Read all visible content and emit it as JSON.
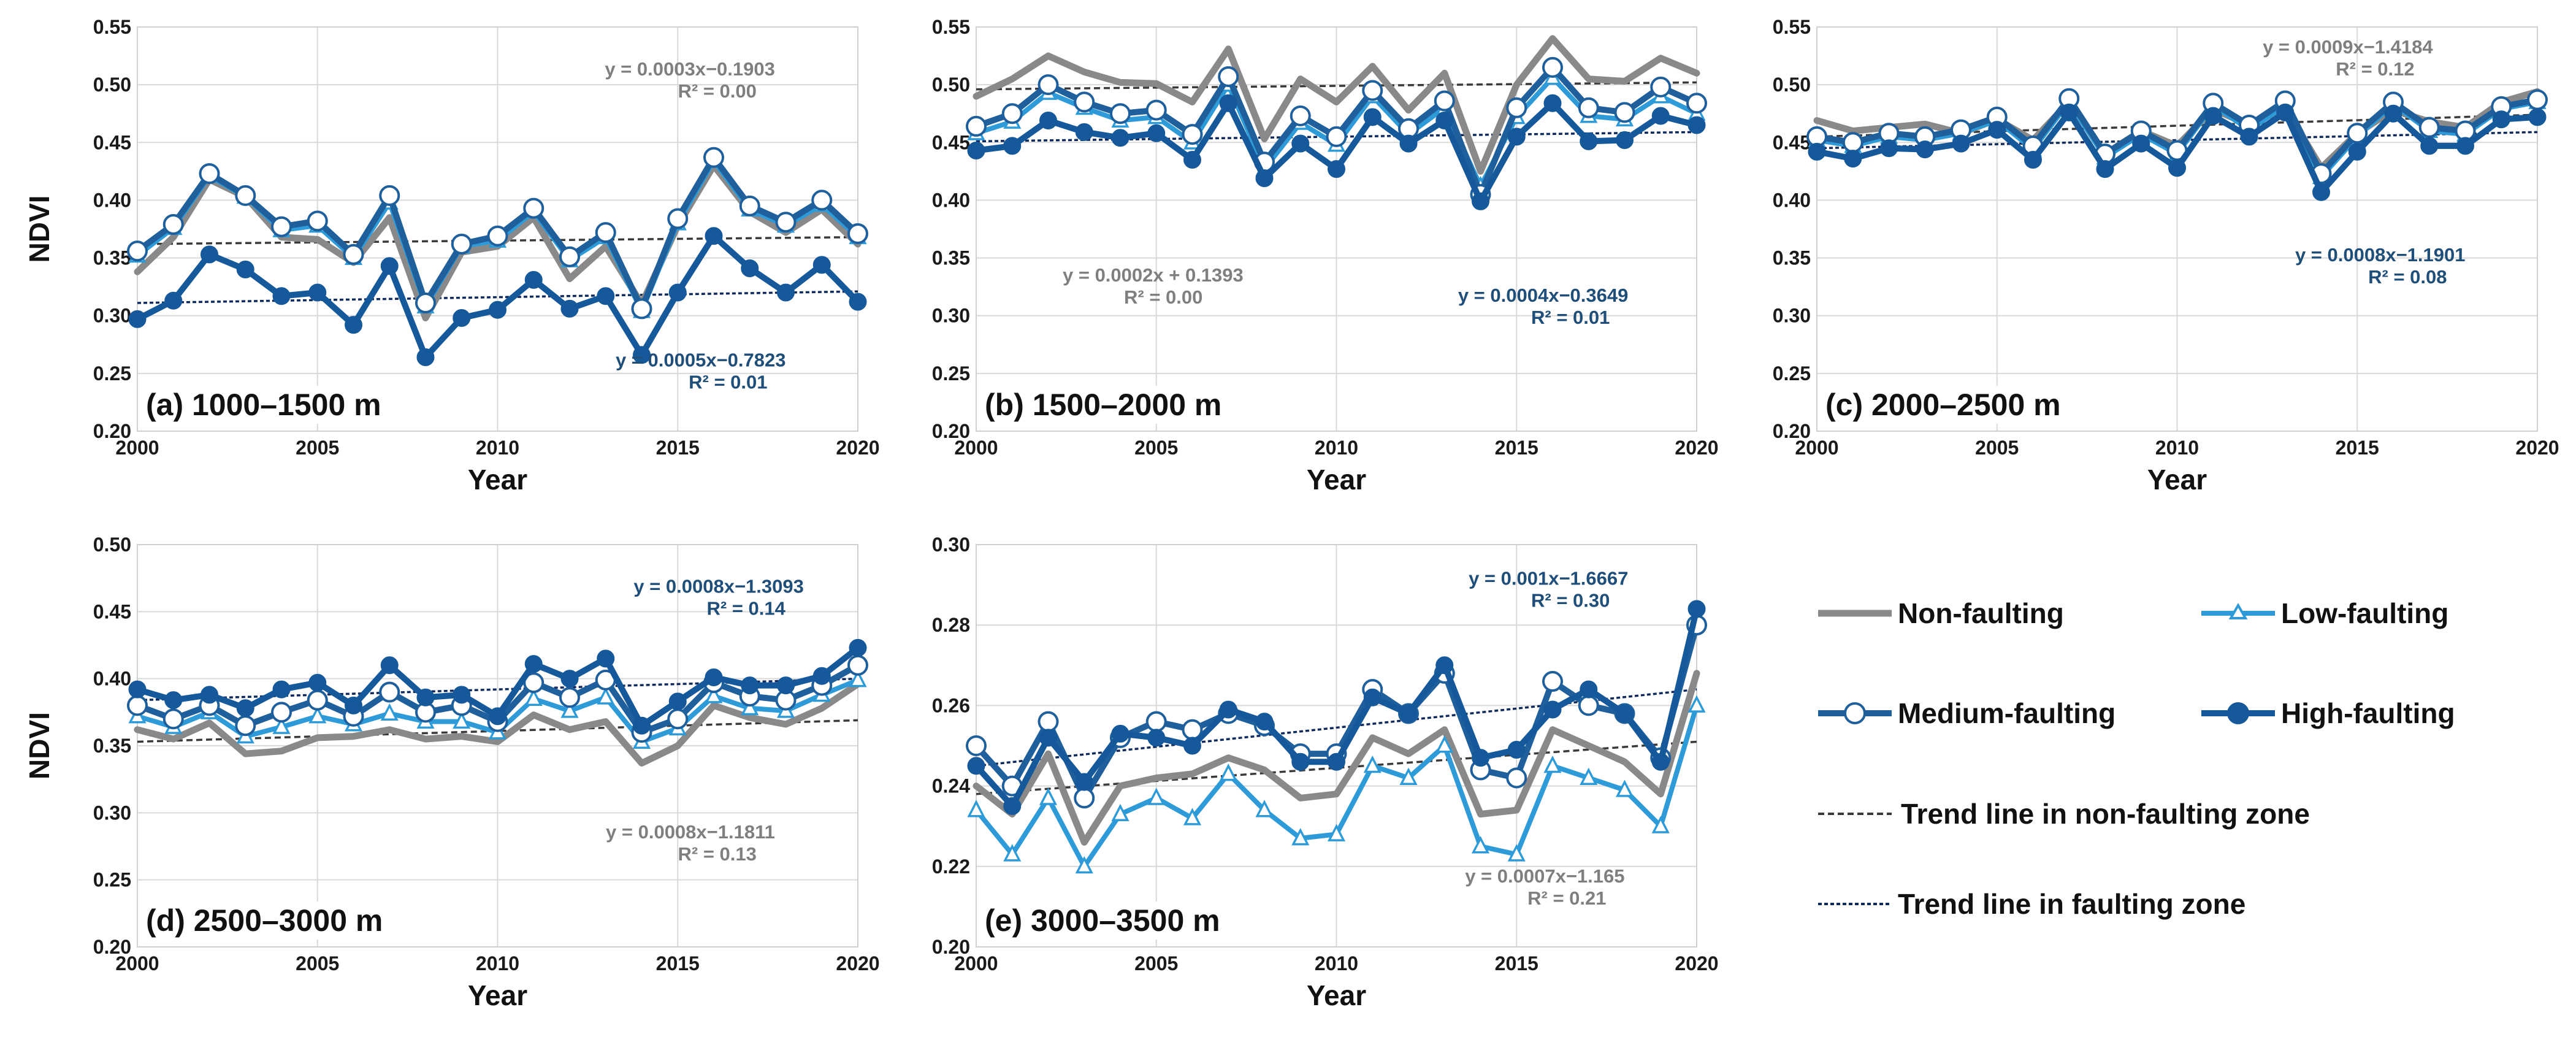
{
  "colors": {
    "non_faulting": "#898989",
    "low_faulting": "#2e9bd8",
    "medium_faulting": "#1e5f9c",
    "high_faulting": "#16599a",
    "trend_non": "#3a3a3a",
    "trend_fault": "#102a5c",
    "eq_gray": "#7f7f7f",
    "eq_blue": "#1f4e79",
    "grid": "#d9d9d9"
  },
  "legend": {
    "non_faulting": "Non-faulting",
    "low_faulting": "Low-faulting",
    "medium_faulting": "Medium-faulting",
    "high_faulting": "High-faulting",
    "trend_non": "Trend line in non-faulting zone",
    "trend_fault": "Trend line in faulting zone"
  },
  "chart_data": [
    {
      "type": "line",
      "panel_label": "(a) 1000–1500 m",
      "xlabel": "Year",
      "ylabel": "NDVI",
      "xlim": [
        2000,
        2020
      ],
      "xticks": [
        "2000",
        "2005",
        "2010",
        "2015",
        "2020"
      ],
      "ylim": [
        0.2,
        0.55
      ],
      "yticks": [
        "0.20",
        "0.25",
        "0.30",
        "0.35",
        "0.40",
        "0.45",
        "0.50",
        "0.55"
      ],
      "x": [
        2000,
        2001,
        2002,
        2003,
        2004,
        2005,
        2006,
        2007,
        2008,
        2009,
        2010,
        2011,
        2012,
        2013,
        2014,
        2015,
        2016,
        2017,
        2018,
        2019,
        2020
      ],
      "series": [
        {
          "name": "Non-faulting",
          "values": [
            0.338,
            0.368,
            0.418,
            0.403,
            0.368,
            0.366,
            0.346,
            0.385,
            0.298,
            0.355,
            0.36,
            0.385,
            0.332,
            0.36,
            0.31,
            0.378,
            0.43,
            0.39,
            0.372,
            0.392,
            0.362
          ]
        },
        {
          "name": "Low-faulting",
          "values": [
            0.352,
            0.376,
            0.421,
            0.403,
            0.374,
            0.378,
            0.35,
            0.398,
            0.308,
            0.36,
            0.365,
            0.39,
            0.348,
            0.368,
            0.304,
            0.38,
            0.434,
            0.392,
            0.378,
            0.396,
            0.368
          ]
        },
        {
          "name": "Medium-faulting",
          "values": [
            0.356,
            0.379,
            0.423,
            0.404,
            0.377,
            0.382,
            0.353,
            0.404,
            0.311,
            0.362,
            0.369,
            0.393,
            0.351,
            0.372,
            0.306,
            0.384,
            0.437,
            0.395,
            0.381,
            0.4,
            0.371
          ]
        },
        {
          "name": "High-faulting",
          "values": [
            0.297,
            0.313,
            0.353,
            0.34,
            0.317,
            0.32,
            0.292,
            0.343,
            0.264,
            0.298,
            0.305,
            0.331,
            0.306,
            0.317,
            0.266,
            0.32,
            0.369,
            0.341,
            0.32,
            0.344,
            0.312
          ]
        }
      ],
      "trend_non": {
        "start": 0.362,
        "end": 0.368
      },
      "trend_fault": {
        "start": 0.311,
        "end": 0.321
      },
      "eq_non": {
        "line1": "y = 0.0003x−0.1903",
        "line2": "R² = 0.00"
      },
      "eq_fault": {
        "line1": "y = 0.0005x−0.7823",
        "line2": "R² = 0.01"
      }
    },
    {
      "type": "line",
      "panel_label": "(b) 1500–2000 m",
      "xlabel": "Year",
      "ylabel": "",
      "xlim": [
        2000,
        2020
      ],
      "xticks": [
        "2000",
        "2005",
        "2010",
        "2015",
        "2020"
      ],
      "ylim": [
        0.2,
        0.55
      ],
      "yticks": [
        "0.20",
        "0.25",
        "0.30",
        "0.35",
        "0.40",
        "0.45",
        "0.50",
        "0.55"
      ],
      "x": [
        2000,
        2001,
        2002,
        2003,
        2004,
        2005,
        2006,
        2007,
        2008,
        2009,
        2010,
        2011,
        2012,
        2013,
        2014,
        2015,
        2016,
        2017,
        2018,
        2019,
        2020
      ],
      "series": [
        {
          "name": "Non-faulting",
          "values": [
            0.49,
            0.505,
            0.525,
            0.511,
            0.502,
            0.501,
            0.485,
            0.531,
            0.453,
            0.505,
            0.485,
            0.516,
            0.478,
            0.51,
            0.425,
            0.5,
            0.54,
            0.505,
            0.503,
            0.523,
            0.51
          ]
        },
        {
          "name": "Low-faulting",
          "values": [
            0.458,
            0.468,
            0.493,
            0.48,
            0.469,
            0.472,
            0.45,
            0.5,
            0.427,
            0.467,
            0.448,
            0.49,
            0.457,
            0.48,
            0.412,
            0.472,
            0.506,
            0.473,
            0.47,
            0.49,
            0.475
          ]
        },
        {
          "name": "Medium-faulting",
          "values": [
            0.464,
            0.475,
            0.5,
            0.485,
            0.475,
            0.478,
            0.457,
            0.507,
            0.433,
            0.473,
            0.455,
            0.495,
            0.462,
            0.486,
            0.405,
            0.48,
            0.515,
            0.48,
            0.476,
            0.498,
            0.484
          ]
        },
        {
          "name": "High-faulting",
          "values": [
            0.443,
            0.447,
            0.469,
            0.459,
            0.454,
            0.458,
            0.435,
            0.484,
            0.419,
            0.449,
            0.427,
            0.472,
            0.449,
            0.469,
            0.399,
            0.455,
            0.484,
            0.451,
            0.452,
            0.473,
            0.465
          ]
        }
      ],
      "trend_non": {
        "start": 0.496,
        "end": 0.502
      },
      "trend_fault": {
        "start": 0.451,
        "end": 0.459
      },
      "eq_non": {
        "line1": "y = 0.0002x + 0.1393",
        "line2": "R² = 0.00"
      },
      "eq_fault": {
        "line1": "y = 0.0004x−0.3649",
        "line2": "R² = 0.01"
      }
    },
    {
      "type": "line",
      "panel_label": "(c) 2000–2500 m",
      "xlabel": "Year",
      "ylabel": "",
      "xlim": [
        2000,
        2020
      ],
      "xticks": [
        "2000",
        "2005",
        "2010",
        "2015",
        "2020"
      ],
      "ylim": [
        0.2,
        0.55
      ],
      "yticks": [
        "0.20",
        "0.25",
        "0.30",
        "0.35",
        "0.40",
        "0.45",
        "0.50",
        "0.55"
      ],
      "x": [
        2000,
        2001,
        2002,
        2003,
        2004,
        2005,
        2006,
        2007,
        2008,
        2009,
        2010,
        2011,
        2012,
        2013,
        2014,
        2015,
        2016,
        2017,
        2018,
        2019,
        2020
      ],
      "series": [
        {
          "name": "Non-faulting",
          "values": [
            0.469,
            0.46,
            0.463,
            0.466,
            0.458,
            0.47,
            0.452,
            0.485,
            0.44,
            0.46,
            0.447,
            0.479,
            0.465,
            0.48,
            0.428,
            0.458,
            0.478,
            0.468,
            0.463,
            0.485,
            0.494
          ]
        },
        {
          "name": "Low-faulting",
          "values": [
            0.452,
            0.447,
            0.455,
            0.452,
            0.458,
            0.469,
            0.444,
            0.485,
            0.437,
            0.457,
            0.44,
            0.482,
            0.461,
            0.482,
            0.42,
            0.455,
            0.483,
            0.46,
            0.457,
            0.479,
            0.485
          ]
        },
        {
          "name": "Medium-faulting",
          "values": [
            0.455,
            0.45,
            0.458,
            0.455,
            0.461,
            0.472,
            0.447,
            0.488,
            0.44,
            0.46,
            0.443,
            0.484,
            0.465,
            0.486,
            0.423,
            0.458,
            0.485,
            0.463,
            0.46,
            0.481,
            0.487
          ]
        },
        {
          "name": "High-faulting",
          "values": [
            0.442,
            0.436,
            0.445,
            0.444,
            0.449,
            0.461,
            0.435,
            0.476,
            0.427,
            0.449,
            0.428,
            0.473,
            0.455,
            0.476,
            0.407,
            0.442,
            0.475,
            0.447,
            0.447,
            0.47,
            0.472
          ]
        }
      ],
      "trend_non": {
        "start": 0.455,
        "end": 0.474
      },
      "trend_fault": {
        "start": 0.445,
        "end": 0.459
      },
      "eq_non": {
        "line1": "y = 0.0009x−1.4184",
        "line2": "R² = 0.12"
      },
      "eq_fault": {
        "line1": "y = 0.0008x−1.1901",
        "line2": "R² = 0.08"
      }
    },
    {
      "type": "line",
      "panel_label": "(d) 2500–3000 m",
      "xlabel": "Year",
      "ylabel": "NDVI",
      "xlim": [
        2000,
        2020
      ],
      "xticks": [
        "2000",
        "2005",
        "2010",
        "2015",
        "2020"
      ],
      "ylim": [
        0.2,
        0.5
      ],
      "yticks": [
        "0.20",
        "0.25",
        "0.30",
        "0.35",
        "0.40",
        "0.45",
        "0.50"
      ],
      "x": [
        2000,
        2001,
        2002,
        2003,
        2004,
        2005,
        2006,
        2007,
        2008,
        2009,
        2010,
        2011,
        2012,
        2013,
        2014,
        2015,
        2016,
        2017,
        2018,
        2019,
        2020
      ],
      "series": [
        {
          "name": "Non-faulting",
          "values": [
            0.362,
            0.355,
            0.367,
            0.344,
            0.346,
            0.356,
            0.357,
            0.362,
            0.355,
            0.357,
            0.353,
            0.373,
            0.362,
            0.368,
            0.337,
            0.35,
            0.38,
            0.371,
            0.366,
            0.378,
            0.396
          ]
        },
        {
          "name": "Low-faulting",
          "values": [
            0.372,
            0.364,
            0.375,
            0.357,
            0.364,
            0.372,
            0.366,
            0.374,
            0.368,
            0.368,
            0.36,
            0.385,
            0.376,
            0.386,
            0.353,
            0.363,
            0.387,
            0.378,
            0.376,
            0.388,
            0.399
          ]
        },
        {
          "name": "Medium-faulting",
          "values": [
            0.38,
            0.37,
            0.38,
            0.365,
            0.375,
            0.384,
            0.372,
            0.39,
            0.375,
            0.38,
            0.368,
            0.397,
            0.386,
            0.399,
            0.36,
            0.37,
            0.397,
            0.387,
            0.384,
            0.395,
            0.41
          ]
        },
        {
          "name": "High-faulting",
          "values": [
            0.392,
            0.384,
            0.388,
            0.378,
            0.392,
            0.397,
            0.38,
            0.41,
            0.386,
            0.388,
            0.372,
            0.411,
            0.4,
            0.415,
            0.365,
            0.383,
            0.401,
            0.395,
            0.395,
            0.402,
            0.423
          ]
        }
      ],
      "trend_non": {
        "start": 0.353,
        "end": 0.369
      },
      "trend_fault": {
        "start": 0.384,
        "end": 0.4
      },
      "eq_non": {
        "line1": "y = 0.0008x−1.1811",
        "line2": "R² = 0.13"
      },
      "eq_fault": {
        "line1": "y = 0.0008x−1.3093",
        "line2": "R² = 0.14"
      }
    },
    {
      "type": "line",
      "panel_label": "(e) 3000–3500 m",
      "xlabel": "Year",
      "ylabel": "",
      "xlim": [
        2000,
        2020
      ],
      "xticks": [
        "2000",
        "2005",
        "2010",
        "2015",
        "2020"
      ],
      "ylim": [
        0.2,
        0.3
      ],
      "yticks": [
        "0.20",
        "0.22",
        "0.24",
        "0.26",
        "0.28",
        "0.30"
      ],
      "x": [
        2000,
        2001,
        2002,
        2003,
        2004,
        2005,
        2006,
        2007,
        2008,
        2009,
        2010,
        2011,
        2012,
        2013,
        2014,
        2015,
        2016,
        2017,
        2018,
        2019,
        2020
      ],
      "series": [
        {
          "name": "Non-faulting",
          "values": [
            0.24,
            0.233,
            0.248,
            0.226,
            0.24,
            0.242,
            0.243,
            0.247,
            0.244,
            0.237,
            0.238,
            0.252,
            0.248,
            0.254,
            0.233,
            0.234,
            0.254,
            0.25,
            0.246,
            0.238,
            0.268
          ]
        },
        {
          "name": "Low-faulting",
          "values": [
            0.234,
            0.223,
            0.237,
            0.22,
            0.233,
            0.237,
            0.232,
            0.243,
            0.234,
            0.227,
            0.228,
            0.245,
            0.242,
            0.25,
            0.225,
            0.223,
            0.245,
            0.242,
            0.239,
            0.23,
            0.26
          ]
        },
        {
          "name": "Medium-faulting",
          "values": [
            0.25,
            0.24,
            0.256,
            0.237,
            0.252,
            0.256,
            0.254,
            0.258,
            0.255,
            0.248,
            0.248,
            0.264,
            0.258,
            0.268,
            0.244,
            0.242,
            0.266,
            0.26,
            0.258,
            0.247,
            0.28
          ]
        },
        {
          "name": "High-faulting",
          "values": [
            0.245,
            0.235,
            0.252,
            0.241,
            0.253,
            0.252,
            0.25,
            0.259,
            0.256,
            0.246,
            0.246,
            0.262,
            0.258,
            0.27,
            0.247,
            0.249,
            0.259,
            0.264,
            0.258,
            0.246,
            0.284
          ]
        }
      ],
      "trend_non": {
        "start": 0.238,
        "end": 0.251
      },
      "trend_fault": {
        "start": 0.245,
        "end": 0.264
      },
      "eq_non": {
        "line1": "y = 0.0007x−1.165",
        "line2": "R² = 0.21"
      },
      "eq_fault": {
        "line1": "y = 0.001x−1.6667",
        "line2": "R² = 0.30"
      }
    }
  ]
}
